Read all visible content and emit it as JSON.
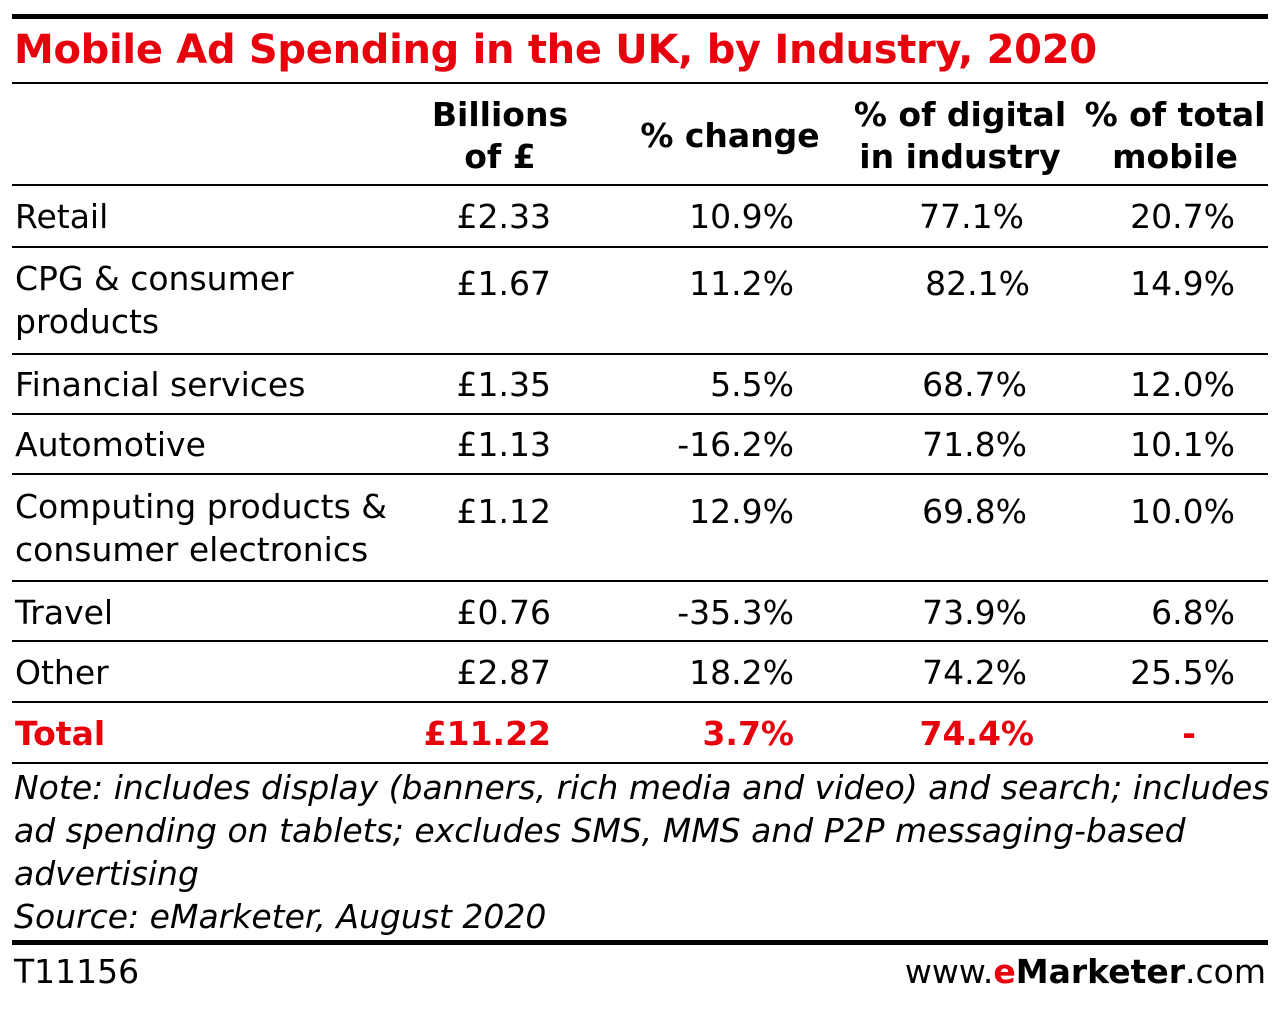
{
  "chart_data": {
    "type": "table",
    "title": "Mobile Ad Spending in the UK, by Industry, 2020",
    "columns": [
      "Billions of £",
      "% change",
      "% of digital in industry",
      "% of total mobile"
    ],
    "column_headers": [
      {
        "line1": "Billions",
        "line2": "of £"
      },
      {
        "line1": "% change",
        "line2": ""
      },
      {
        "line1": "% of digital",
        "line2": "in industry"
      },
      {
        "line1": "% of total",
        "line2": "mobile"
      }
    ],
    "rows": [
      {
        "label_lines": [
          "Retail"
        ],
        "values": [
          "£2.33",
          "10.9%",
          "77.1%",
          "20.7%"
        ]
      },
      {
        "label_lines": [
          "CPG & consumer",
          "products"
        ],
        "values": [
          "£1.67",
          "11.2%",
          "82.1%",
          "14.9%"
        ]
      },
      {
        "label_lines": [
          "Financial services"
        ],
        "values": [
          "£1.35",
          "5.5%",
          "68.7%",
          "12.0%"
        ]
      },
      {
        "label_lines": [
          "Automotive"
        ],
        "values": [
          "£1.13",
          "-16.2%",
          "71.8%",
          "10.1%"
        ]
      },
      {
        "label_lines": [
          "Computing products &",
          "consumer electronics"
        ],
        "values": [
          "£1.12",
          "12.9%",
          "69.8%",
          "10.0%"
        ]
      },
      {
        "label_lines": [
          "Travel"
        ],
        "values": [
          "£0.76",
          "-35.3%",
          "73.9%",
          "6.8%"
        ]
      },
      {
        "label_lines": [
          "Other"
        ],
        "values": [
          "£2.87",
          "18.2%",
          "74.2%",
          "25.5%"
        ]
      }
    ],
    "total": {
      "label": "Total",
      "values": [
        "£11.22",
        "3.7%",
        "74.4%",
        "-"
      ]
    },
    "note_lines": [
      "Note: includes display (banners, rich media and video) and search; includes",
      "ad spending on tablets; excludes SMS, MMS and P2P messaging-based",
      "advertising",
      "Source: eMarketer, August 2020"
    ],
    "table_id": "T11156",
    "brand": {
      "prefix": "www.",
      "e": "e",
      "name": "Marketer",
      "suffix": ".com"
    }
  },
  "colors": {
    "accent": "#e8000c",
    "text": "#000000"
  }
}
